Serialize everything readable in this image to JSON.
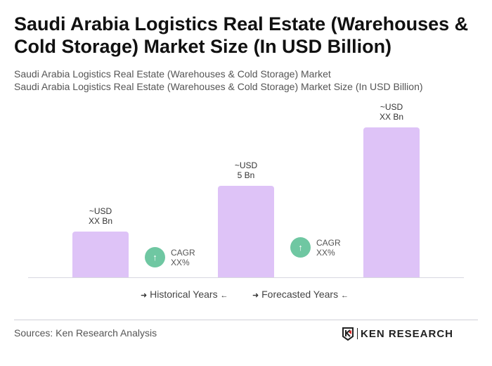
{
  "title": "Saudi Arabia Logistics Real Estate (Warehouses & Cold Storage) Market Size (In USD Billion)",
  "subtitle_1": "Saudi Arabia Logistics Real Estate (Warehouses & Cold Storage) Market",
  "subtitle_2": "Saudi Arabia Logistics Real Estate (Warehouses & Cold Storage) Market Size (In USD Billion)",
  "chart_data": {
    "type": "bar",
    "categories": [
      "",
      "",
      ""
    ],
    "values": [
      2.5,
      5,
      8.2
    ],
    "data_labels": [
      {
        "line1": "~USD",
        "line2": "XX Bn"
      },
      {
        "line1": "~USD",
        "line2": "5 Bn"
      },
      {
        "line1": "~USD",
        "line2": "XX Bn"
      }
    ],
    "annotations": [
      {
        "label": "CAGR",
        "value": "XX%"
      },
      {
        "label": "CAGR",
        "value": "XX%"
      }
    ],
    "legend": [
      "Historical Years",
      "Forecasted Years"
    ],
    "legend_position": "bottom",
    "grid": false,
    "bar_color": "#dec3f7",
    "cagr_color": "#6fc7a2"
  },
  "source": "Sources: Ken Research Analysis",
  "logo_text": "KEN RESEARCH"
}
